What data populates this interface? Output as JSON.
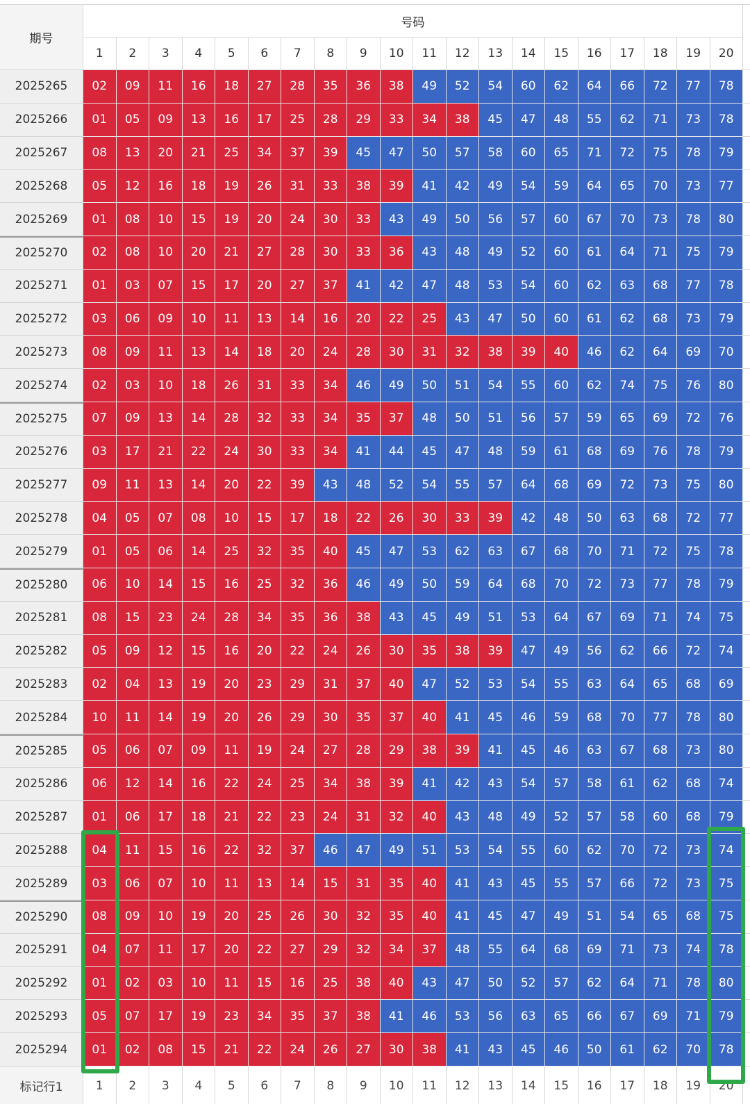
{
  "header": {
    "label": "期号",
    "title": "号码",
    "columns": [
      1,
      2,
      3,
      4,
      5,
      6,
      7,
      8,
      9,
      10,
      11,
      12,
      13,
      14,
      15,
      16,
      17,
      18,
      19,
      20
    ]
  },
  "settings": {
    "low_color": "#d8263a",
    "high_color": "#3a66c4",
    "low_max": 40
  },
  "rows": [
    {
      "period": "2025265",
      "numbers": [
        "02",
        "09",
        "11",
        "16",
        "18",
        "27",
        "28",
        "35",
        "36",
        "38",
        "49",
        "52",
        "54",
        "60",
        "62",
        "64",
        "66",
        "72",
        "77",
        "78"
      ]
    },
    {
      "period": "2025266",
      "numbers": [
        "01",
        "05",
        "09",
        "13",
        "16",
        "17",
        "25",
        "28",
        "29",
        "33",
        "34",
        "38",
        "45",
        "47",
        "48",
        "55",
        "62",
        "71",
        "73",
        "78"
      ]
    },
    {
      "period": "2025267",
      "numbers": [
        "08",
        "13",
        "20",
        "21",
        "25",
        "34",
        "37",
        "39",
        "45",
        "47",
        "50",
        "57",
        "58",
        "60",
        "65",
        "71",
        "72",
        "75",
        "78",
        "79"
      ]
    },
    {
      "period": "2025268",
      "numbers": [
        "05",
        "12",
        "16",
        "18",
        "19",
        "26",
        "31",
        "33",
        "38",
        "39",
        "41",
        "42",
        "49",
        "54",
        "59",
        "64",
        "65",
        "70",
        "73",
        "77"
      ]
    },
    {
      "period": "2025269",
      "numbers": [
        "01",
        "08",
        "10",
        "15",
        "19",
        "20",
        "24",
        "30",
        "33",
        "43",
        "49",
        "50",
        "56",
        "57",
        "60",
        "67",
        "70",
        "73",
        "78",
        "80"
      ]
    },
    {
      "period": "2025270",
      "numbers": [
        "02",
        "08",
        "10",
        "20",
        "21",
        "27",
        "28",
        "30",
        "33",
        "36",
        "43",
        "48",
        "49",
        "52",
        "60",
        "61",
        "64",
        "71",
        "75",
        "79"
      ]
    },
    {
      "period": "2025271",
      "numbers": [
        "01",
        "03",
        "07",
        "15",
        "17",
        "20",
        "27",
        "37",
        "41",
        "42",
        "47",
        "48",
        "53",
        "54",
        "60",
        "62",
        "63",
        "68",
        "77",
        "78"
      ]
    },
    {
      "period": "2025272",
      "numbers": [
        "03",
        "06",
        "09",
        "10",
        "11",
        "13",
        "14",
        "16",
        "20",
        "22",
        "25",
        "43",
        "47",
        "50",
        "60",
        "61",
        "62",
        "68",
        "73",
        "79"
      ]
    },
    {
      "period": "2025273",
      "numbers": [
        "08",
        "09",
        "11",
        "13",
        "14",
        "18",
        "20",
        "24",
        "28",
        "30",
        "31",
        "32",
        "38",
        "39",
        "40",
        "46",
        "62",
        "64",
        "69",
        "70"
      ]
    },
    {
      "period": "2025274",
      "numbers": [
        "02",
        "03",
        "10",
        "18",
        "26",
        "31",
        "33",
        "34",
        "46",
        "49",
        "50",
        "51",
        "54",
        "55",
        "60",
        "62",
        "74",
        "75",
        "76",
        "80"
      ]
    },
    {
      "period": "2025275",
      "numbers": [
        "07",
        "09",
        "13",
        "14",
        "28",
        "32",
        "33",
        "34",
        "35",
        "37",
        "48",
        "50",
        "51",
        "56",
        "57",
        "59",
        "65",
        "69",
        "72",
        "76"
      ]
    },
    {
      "period": "2025276",
      "numbers": [
        "03",
        "17",
        "21",
        "22",
        "24",
        "30",
        "33",
        "34",
        "41",
        "44",
        "45",
        "47",
        "48",
        "59",
        "61",
        "68",
        "69",
        "76",
        "78",
        "79"
      ]
    },
    {
      "period": "2025277",
      "numbers": [
        "09",
        "11",
        "13",
        "14",
        "20",
        "22",
        "39",
        "43",
        "48",
        "52",
        "54",
        "55",
        "57",
        "64",
        "68",
        "69",
        "72",
        "73",
        "75",
        "80"
      ]
    },
    {
      "period": "2025278",
      "numbers": [
        "04",
        "05",
        "07",
        "08",
        "10",
        "15",
        "17",
        "18",
        "22",
        "26",
        "30",
        "33",
        "39",
        "42",
        "48",
        "50",
        "63",
        "68",
        "72",
        "77"
      ]
    },
    {
      "period": "2025279",
      "numbers": [
        "01",
        "05",
        "06",
        "14",
        "25",
        "32",
        "35",
        "40",
        "45",
        "47",
        "53",
        "62",
        "63",
        "67",
        "68",
        "70",
        "71",
        "72",
        "75",
        "78"
      ]
    },
    {
      "period": "2025280",
      "numbers": [
        "06",
        "10",
        "14",
        "15",
        "16",
        "25",
        "32",
        "36",
        "46",
        "49",
        "50",
        "59",
        "64",
        "68",
        "70",
        "72",
        "73",
        "77",
        "78",
        "79"
      ]
    },
    {
      "period": "2025281",
      "numbers": [
        "08",
        "15",
        "23",
        "24",
        "28",
        "34",
        "35",
        "36",
        "38",
        "43",
        "45",
        "49",
        "51",
        "53",
        "64",
        "67",
        "69",
        "71",
        "74",
        "75"
      ]
    },
    {
      "period": "2025282",
      "numbers": [
        "05",
        "09",
        "12",
        "15",
        "16",
        "20",
        "22",
        "24",
        "26",
        "30",
        "35",
        "38",
        "39",
        "47",
        "49",
        "56",
        "62",
        "66",
        "72",
        "74"
      ]
    },
    {
      "period": "2025283",
      "numbers": [
        "02",
        "04",
        "13",
        "19",
        "20",
        "23",
        "29",
        "31",
        "37",
        "40",
        "47",
        "52",
        "53",
        "54",
        "55",
        "63",
        "64",
        "65",
        "68",
        "69"
      ]
    },
    {
      "period": "2025284",
      "numbers": [
        "10",
        "11",
        "14",
        "19",
        "20",
        "26",
        "29",
        "30",
        "35",
        "37",
        "40",
        "41",
        "45",
        "46",
        "59",
        "68",
        "70",
        "77",
        "78",
        "80"
      ]
    },
    {
      "period": "2025285",
      "numbers": [
        "05",
        "06",
        "07",
        "09",
        "11",
        "19",
        "24",
        "27",
        "28",
        "29",
        "38",
        "39",
        "41",
        "45",
        "46",
        "63",
        "67",
        "68",
        "73",
        "80"
      ]
    },
    {
      "period": "2025286",
      "numbers": [
        "06",
        "12",
        "14",
        "16",
        "22",
        "24",
        "25",
        "34",
        "38",
        "39",
        "41",
        "42",
        "43",
        "54",
        "57",
        "58",
        "61",
        "62",
        "68",
        "74"
      ]
    },
    {
      "period": "2025287",
      "numbers": [
        "01",
        "06",
        "17",
        "18",
        "21",
        "22",
        "23",
        "24",
        "31",
        "32",
        "40",
        "43",
        "48",
        "49",
        "52",
        "57",
        "58",
        "60",
        "68",
        "79"
      ]
    },
    {
      "period": "2025288",
      "numbers": [
        "04",
        "11",
        "15",
        "16",
        "22",
        "32",
        "37",
        "46",
        "47",
        "49",
        "51",
        "53",
        "54",
        "55",
        "60",
        "62",
        "70",
        "72",
        "73",
        "74"
      ]
    },
    {
      "period": "2025289",
      "numbers": [
        "03",
        "06",
        "07",
        "10",
        "11",
        "13",
        "14",
        "15",
        "31",
        "35",
        "40",
        "41",
        "43",
        "45",
        "55",
        "57",
        "66",
        "72",
        "73",
        "75"
      ]
    },
    {
      "period": "2025290",
      "numbers": [
        "08",
        "09",
        "10",
        "19",
        "20",
        "25",
        "26",
        "30",
        "32",
        "35",
        "40",
        "41",
        "45",
        "47",
        "49",
        "51",
        "54",
        "65",
        "68",
        "75"
      ]
    },
    {
      "period": "2025291",
      "numbers": [
        "04",
        "07",
        "11",
        "17",
        "20",
        "22",
        "27",
        "29",
        "32",
        "34",
        "37",
        "48",
        "55",
        "64",
        "68",
        "69",
        "71",
        "73",
        "74",
        "78"
      ]
    },
    {
      "period": "2025292",
      "numbers": [
        "01",
        "02",
        "03",
        "10",
        "11",
        "15",
        "16",
        "25",
        "38",
        "40",
        "43",
        "47",
        "50",
        "52",
        "57",
        "62",
        "64",
        "71",
        "78",
        "80"
      ]
    },
    {
      "period": "2025293",
      "numbers": [
        "05",
        "07",
        "17",
        "19",
        "23",
        "34",
        "35",
        "37",
        "38",
        "41",
        "46",
        "53",
        "56",
        "63",
        "65",
        "66",
        "67",
        "69",
        "71",
        "79"
      ]
    },
    {
      "period": "2025294",
      "numbers": [
        "01",
        "02",
        "08",
        "15",
        "21",
        "22",
        "24",
        "26",
        "27",
        "30",
        "38",
        "41",
        "43",
        "45",
        "46",
        "50",
        "61",
        "62",
        "70",
        "78"
      ]
    }
  ],
  "footer": {
    "label": "标记行1",
    "values": [
      1,
      2,
      3,
      4,
      5,
      6,
      7,
      8,
      9,
      10,
      11,
      12,
      13,
      14,
      15,
      16,
      17,
      18,
      19,
      20
    ]
  }
}
